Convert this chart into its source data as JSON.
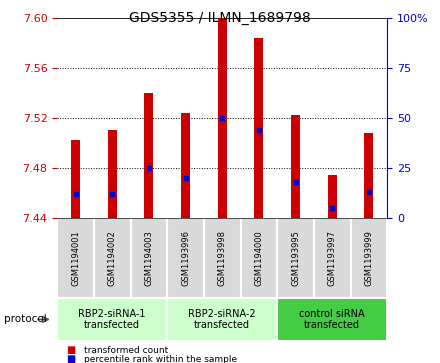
{
  "title": "GDS5355 / ILMN_1689798",
  "samples": [
    "GSM1194001",
    "GSM1194002",
    "GSM1194003",
    "GSM1193996",
    "GSM1193998",
    "GSM1194000",
    "GSM1193995",
    "GSM1193997",
    "GSM1193999"
  ],
  "red_values": [
    7.502,
    7.51,
    7.54,
    7.524,
    7.6,
    7.584,
    7.522,
    7.474,
    7.508
  ],
  "blue_values_pct": [
    12,
    12,
    25,
    20,
    50,
    44,
    18,
    5,
    13
  ],
  "ylim": [
    7.44,
    7.6
  ],
  "y_ticks": [
    7.44,
    7.48,
    7.52,
    7.56,
    7.6
  ],
  "right_ylim": [
    0,
    100
  ],
  "right_yticks": [
    0,
    25,
    50,
    75,
    100
  ],
  "right_yticklabels": [
    "0",
    "25",
    "50",
    "75",
    "100%"
  ],
  "bar_bottom": 7.44,
  "bar_width": 0.25,
  "red_color": "#cc0000",
  "blue_color": "#0000cc",
  "axis_left_color": "#cc0000",
  "axis_right_color": "#0000cc",
  "groups": [
    {
      "label": "RBP2-siRNA-1\ntransfected",
      "indices": [
        0,
        1,
        2
      ],
      "color": "#ccffcc"
    },
    {
      "label": "RBP2-siRNA-2\ntransfected",
      "indices": [
        3,
        4,
        5
      ],
      "color": "#ccffcc"
    },
    {
      "label": "control siRNA\ntransfected",
      "indices": [
        6,
        7,
        8
      ],
      "color": "#44cc44"
    }
  ],
  "sample_box_color": "#d9d9d9",
  "protocol_label": "protocol",
  "legend_red": "transformed count",
  "legend_blue": "percentile rank within the sample",
  "tick_label_color_left": "#cc0000",
  "tick_label_color_right": "#0000cc",
  "fig_width": 4.4,
  "fig_height": 3.63,
  "dpi": 100
}
